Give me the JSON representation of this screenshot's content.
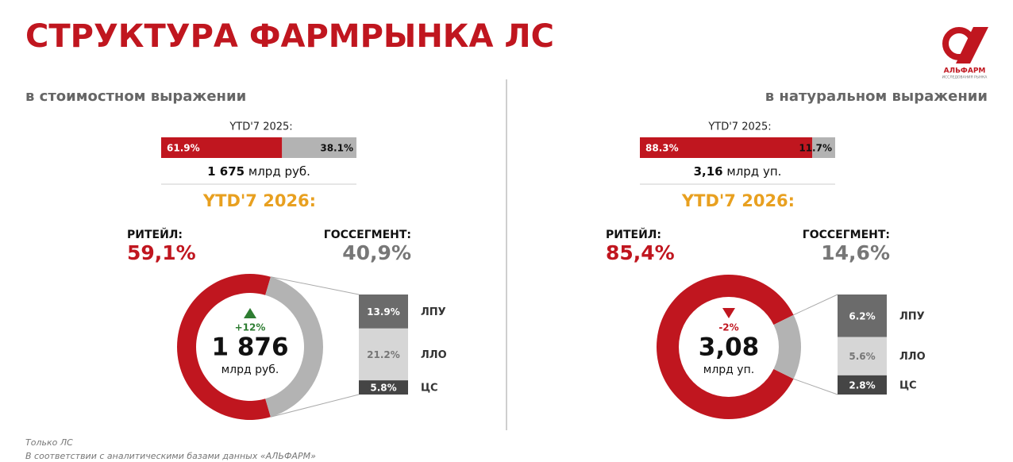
{
  "title": "СТРУКТУРА ФАРМРЫНКА ЛС",
  "logo": {
    "name": "АЛЬФАРМ",
    "tagline": "ИССЛЕДОВАНИЯ РЫНКА"
  },
  "footnotes": [
    "Только ЛС",
    "В соответствии с аналитическими базами данных «АЛЬФАРМ»"
  ],
  "chart_data": [
    {
      "type": "donut",
      "subtitle": "в стоимостном выражении",
      "prev_label": "YTD'7 2025:",
      "prev_bar": {
        "values": [
          61.9,
          38.1
        ],
        "value_labels": [
          "61.9%",
          "38.1%"
        ],
        "colors": [
          "#c0161f",
          "#b3b3b3"
        ]
      },
      "prev_total": "1 675",
      "prev_unit": "млрд руб.",
      "current_label": "YTD'7 2026:",
      "categories": [
        "РИТЕЙЛ:",
        "ГОССЕГМЕНТ:"
      ],
      "values": [
        59.1,
        40.9
      ],
      "value_labels": [
        "59,1%",
        "40,9%"
      ],
      "colors": [
        "#c0161f",
        "#b3b3b3"
      ],
      "change": "+12%",
      "change_direction": "up",
      "change_color": "#2e7d32",
      "total": "1 876",
      "total_unit": "млрд руб.",
      "breakdown": {
        "categories": [
          "ЛПУ",
          "ЛЛО",
          "ЦС"
        ],
        "values": [
          13.9,
          21.2,
          5.8
        ],
        "value_labels": [
          "13.9%",
          "21.2%",
          "5.8%"
        ],
        "colors": [
          "#6b6b6b",
          "#d6d6d6",
          "#454545"
        ]
      }
    },
    {
      "type": "donut",
      "subtitle": "в натуральном выражении",
      "prev_label": "YTD'7 2025:",
      "prev_bar": {
        "values": [
          88.3,
          11.7
        ],
        "value_labels": [
          "88.3%",
          "11.7%"
        ],
        "colors": [
          "#c0161f",
          "#b3b3b3"
        ]
      },
      "prev_total": "3,16",
      "prev_unit": "млрд уп.",
      "current_label": "YTD'7 2026:",
      "categories": [
        "РИТЕЙЛ:",
        "ГОССЕГМЕНТ:"
      ],
      "values": [
        85.4,
        14.6
      ],
      "value_labels": [
        "85,4%",
        "14,6%"
      ],
      "colors": [
        "#c0161f",
        "#b3b3b3"
      ],
      "change": "-2%",
      "change_direction": "down",
      "change_color": "#c0161f",
      "total": "3,08",
      "total_unit": "млрд уп.",
      "breakdown": {
        "categories": [
          "ЛПУ",
          "ЛЛО",
          "ЦС"
        ],
        "values": [
          6.2,
          5.6,
          2.8
        ],
        "value_labels": [
          "6.2%",
          "5.6%",
          "2.8%"
        ],
        "colors": [
          "#6b6b6b",
          "#d6d6d6",
          "#454545"
        ]
      }
    }
  ]
}
